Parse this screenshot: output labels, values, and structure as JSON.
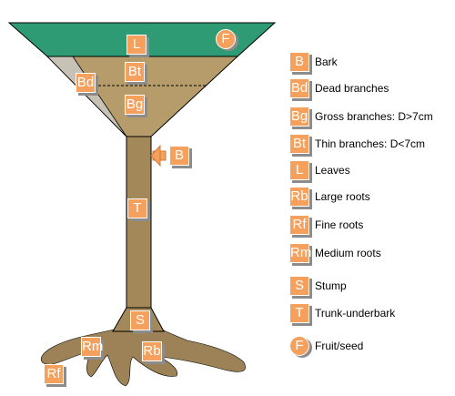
{
  "diagram": {
    "colors": {
      "canopy": "#2e9b74",
      "crown": "#b59c6a",
      "trunk": "#a3895a",
      "roots": "#9c8256",
      "dead": "#c7c1b6",
      "tag": "#f5a05c",
      "outline": "#000000"
    },
    "tags": {
      "leaves": "L",
      "fruit": "F",
      "thin_branches": "Bt",
      "dead_branches": "Bd",
      "gross_branches": "Bg",
      "bark": "B",
      "trunk": "T",
      "stump": "S",
      "medium_roots": "Rm",
      "large_roots": "Rb",
      "fine_roots": "Rf"
    }
  },
  "legend": [
    {
      "abbr": "B",
      "label": "Bark",
      "shape": "square"
    },
    {
      "abbr": "Bd",
      "label": "Dead branches",
      "shape": "square"
    },
    {
      "abbr": "Bg",
      "label": "Gross branches: D>7cm",
      "shape": "square"
    },
    {
      "abbr": "Bt",
      "label": "Thin branches: D<7cm",
      "shape": "square"
    },
    {
      "abbr": "L",
      "label": "Leaves",
      "shape": "square"
    },
    {
      "abbr": "Rb",
      "label": "Large roots",
      "shape": "square"
    },
    {
      "abbr": "Rf",
      "label": "Fine roots",
      "shape": "square"
    },
    {
      "abbr": "Rm",
      "label": "Medium roots",
      "shape": "square"
    },
    {
      "abbr": "S",
      "label": "Stump",
      "shape": "square"
    },
    {
      "abbr": "T",
      "label": "Trunk-underbark",
      "shape": "square"
    },
    {
      "abbr": "F",
      "label": "Fruit/seed",
      "shape": "circle"
    }
  ]
}
